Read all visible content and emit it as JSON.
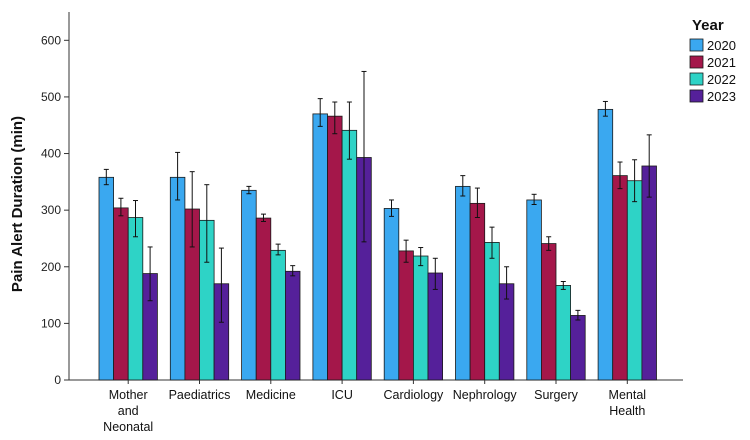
{
  "chart_data": {
    "type": "bar",
    "title": "",
    "xlabel": "",
    "ylabel": "Pain Alert Duration (min)",
    "ylim": [
      0,
      650
    ],
    "yticks": [
      0,
      100,
      200,
      300,
      400,
      500,
      600
    ],
    "grid": false,
    "legend": {
      "title": "Year",
      "position": "top-right"
    },
    "categories": [
      [
        "Mother",
        "and",
        "Neonatal"
      ],
      [
        "Paediatrics"
      ],
      [
        "Medicine"
      ],
      [
        "ICU"
      ],
      [
        "Cardiology"
      ],
      [
        "Nephrology"
      ],
      [
        "Surgery"
      ],
      [
        "Mental",
        "Health"
      ]
    ],
    "series": [
      {
        "name": "2020",
        "color": "#3aa8f0",
        "values": [
          358,
          358,
          335,
          470,
          303,
          342,
          318,
          478
        ],
        "err_low": [
          345,
          318,
          329,
          448,
          289,
          325,
          310,
          466
        ],
        "err_high": [
          372,
          402,
          342,
          497,
          318,
          361,
          328,
          492
        ]
      },
      {
        "name": "2021",
        "color": "#a4174a",
        "values": [
          304,
          302,
          286,
          466,
          228,
          312,
          241,
          361
        ],
        "err_low": [
          290,
          235,
          280,
          435,
          208,
          287,
          229,
          338
        ],
        "err_high": [
          321,
          368,
          293,
          491,
          247,
          339,
          253,
          385
        ]
      },
      {
        "name": "2022",
        "color": "#2ed3c6",
        "values": [
          287,
          282,
          229,
          441,
          219,
          243,
          167,
          352
        ],
        "err_low": [
          253,
          208,
          221,
          390,
          202,
          215,
          160,
          315
        ],
        "err_high": [
          317,
          345,
          240,
          491,
          234,
          270,
          174,
          389
        ]
      },
      {
        "name": "2023",
        "color": "#55209a",
        "values": [
          188,
          170,
          192,
          393,
          189,
          170,
          114,
          378
        ],
        "err_low": [
          140,
          102,
          184,
          244,
          160,
          143,
          106,
          323
        ],
        "err_high": [
          235,
          233,
          202,
          545,
          215,
          200,
          123,
          433
        ]
      }
    ]
  }
}
